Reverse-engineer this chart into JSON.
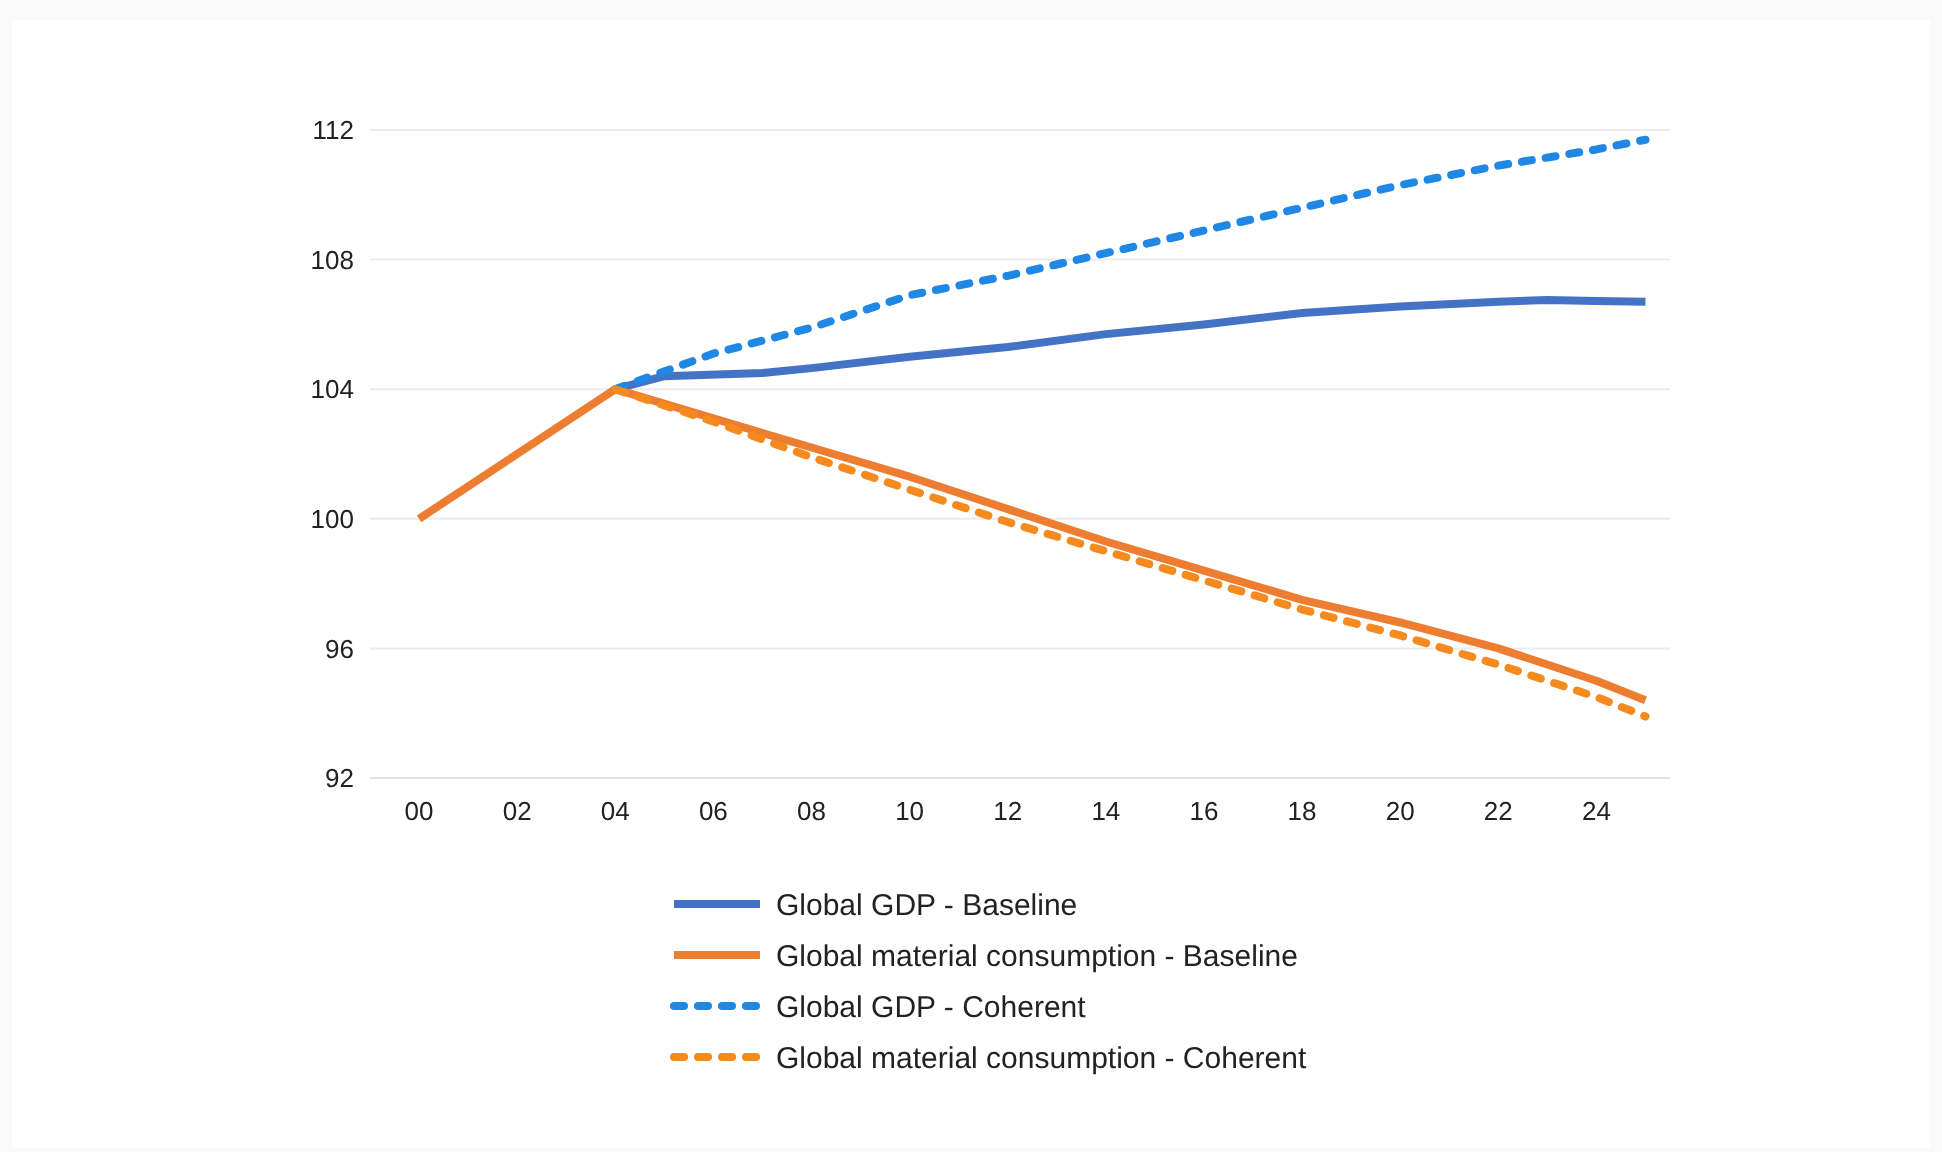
{
  "chart_data": {
    "type": "line",
    "x": [
      0,
      4,
      6,
      8,
      10,
      12,
      14,
      16,
      18,
      20,
      22,
      24,
      25
    ],
    "series": [
      {
        "name": "Global GDP - Baseline",
        "color": "#4472c4",
        "line_style": "solid",
        "x": [
          4,
          5,
          7,
          8,
          10,
          12,
          14,
          16,
          18,
          20,
          22,
          23,
          24,
          25
        ],
        "values": [
          104,
          104.4,
          104.5,
          104.65,
          105,
          105.3,
          105.7,
          106,
          106.35,
          106.55,
          106.7,
          106.75,
          106.72,
          106.7
        ]
      },
      {
        "name": "Global material consumption - Baseline",
        "color": "#ed7d31",
        "line_style": "solid",
        "values": [
          100,
          104,
          103.1,
          102.2,
          101.3,
          100.3,
          99.3,
          98.4,
          97.5,
          96.8,
          96,
          95,
          94.4
        ]
      },
      {
        "name": "Global GDP - Coherent",
        "color": "#1f88e5",
        "line_style": "dotted",
        "x": [
          4,
          6,
          7,
          8,
          9,
          10,
          12,
          14,
          16,
          18,
          20,
          22,
          24,
          25
        ],
        "values": [
          104,
          105.1,
          105.5,
          105.9,
          106.4,
          106.9,
          107.5,
          108.2,
          108.9,
          109.6,
          110.3,
          110.9,
          111.4,
          111.7
        ]
      },
      {
        "name": "Global material consumption - Coherent",
        "color": "#f58a1f",
        "line_style": "dotted",
        "x": [
          4,
          6,
          8,
          10,
          12,
          14,
          16,
          18,
          20,
          22,
          24,
          25
        ],
        "values": [
          104,
          103,
          101.9,
          100.9,
          99.9,
          99,
          98.1,
          97.2,
          96.4,
          95.5,
          94.5,
          93.9
        ]
      }
    ],
    "xlim": [
      -1,
      25.5
    ],
    "xticks": [
      {
        "value": 0,
        "label": "00"
      },
      {
        "value": 2,
        "label": "02"
      },
      {
        "value": 4,
        "label": "04"
      },
      {
        "value": 6,
        "label": "06"
      },
      {
        "value": 8,
        "label": "08"
      },
      10,
      12,
      14,
      16,
      18,
      20,
      22,
      24
    ],
    "ylim": [
      92,
      112
    ],
    "yticks": [
      92,
      96,
      100,
      104,
      108,
      112
    ],
    "grid": "y",
    "legend": "bottom"
  }
}
